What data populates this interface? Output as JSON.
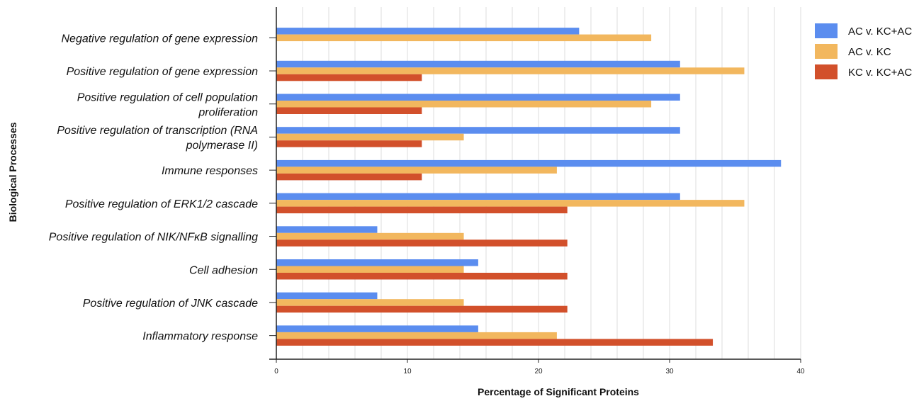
{
  "chart_data": {
    "type": "bar",
    "orientation": "horizontal",
    "categories": [
      "Negative regulation of gene expression",
      "Positive regulation of gene expression",
      "Positive regulation of cell population proliferation",
      "Positive regulation of transcription (RNA polymerase II)",
      "Immune responses",
      "Positive regulation of ERK1/2 cascade",
      "Positive regulation of NIK/NFκB signalling",
      "Cell adhesion",
      "Positive regulation of JNK cascade",
      "Inflammatory response"
    ],
    "category_lines": [
      [
        "Negative regulation of gene expression"
      ],
      [
        "Positive regulation of gene expression"
      ],
      [
        "Positive regulation of cell population",
        "proliferation"
      ],
      [
        "Positive regulation of transcription (RNA",
        "polymerase II)"
      ],
      [
        "Immune responses"
      ],
      [
        "Positive regulation of ERK1/2 cascade"
      ],
      [
        "Positive regulation of NIK/NFκB signalling"
      ],
      [
        "Cell adhesion"
      ],
      [
        "Positive regulation of JNK cascade"
      ],
      [
        "Inflammatory response"
      ]
    ],
    "series": [
      {
        "name": "AC v. KC+AC",
        "color": "#5B8DEF",
        "values": [
          23.1,
          30.8,
          30.8,
          30.8,
          38.5,
          30.8,
          7.7,
          15.4,
          7.7,
          15.4
        ]
      },
      {
        "name": "AC v. KC",
        "color": "#F2B75E",
        "values": [
          28.6,
          35.7,
          28.6,
          14.3,
          21.4,
          35.7,
          14.3,
          14.3,
          14.3,
          21.4
        ]
      },
      {
        "name": "KC v. KC+AC",
        "color": "#D2502B",
        "values": [
          null,
          11.1,
          11.1,
          11.1,
          11.1,
          22.2,
          22.2,
          22.2,
          22.2,
          33.3
        ]
      }
    ],
    "x_ticks": [
      0,
      10,
      20,
      30,
      40
    ],
    "xlim": [
      0,
      40
    ],
    "xlabel": "Percentage of Significant Proteins",
    "ylabel": "Biological Processes",
    "title": "",
    "grid": "vertical",
    "legend_position": "top-right"
  }
}
